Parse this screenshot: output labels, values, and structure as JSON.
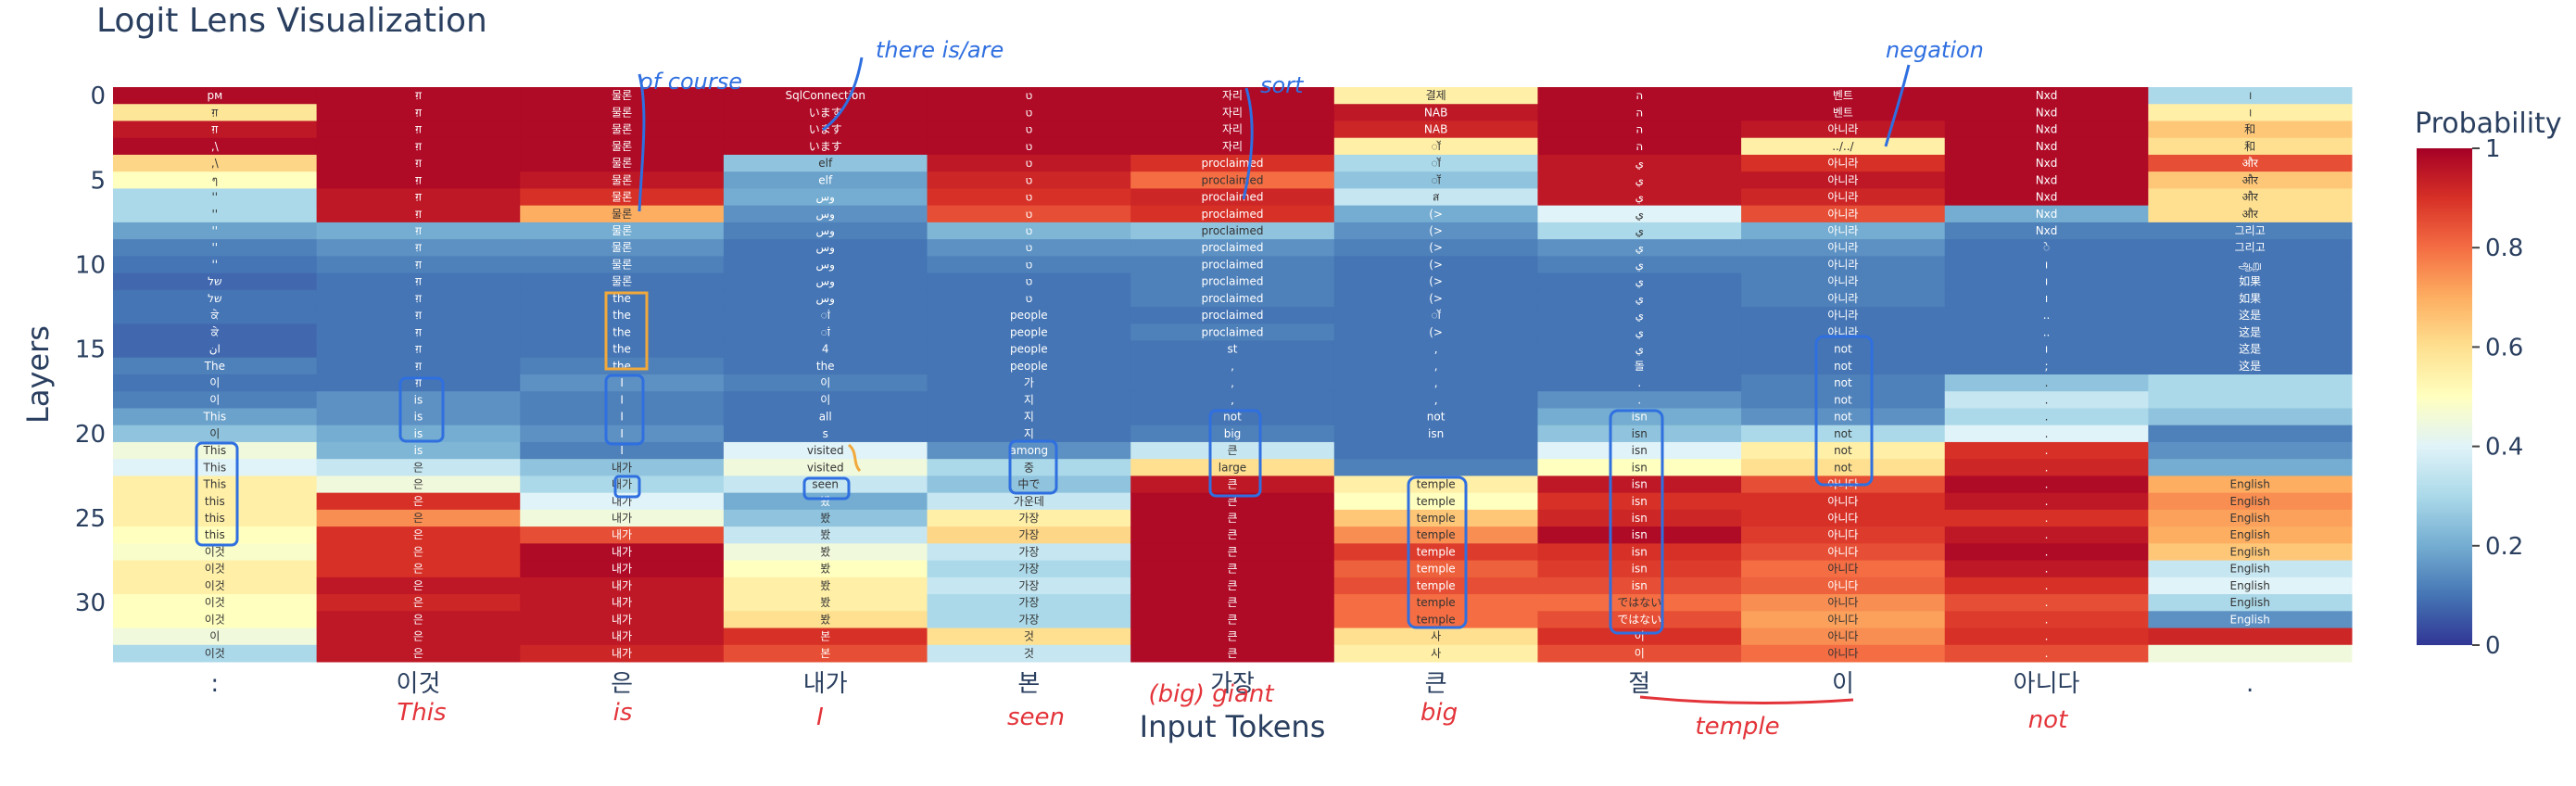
{
  "chart_data": {
    "type": "heatmap",
    "title": "Logit Lens Visualization",
    "xlabel": "Input Tokens",
    "ylabel": "Layers",
    "x_tokens": [
      ":",
      "이것",
      "은",
      "내가",
      "본",
      "가장",
      "큰",
      "절",
      "이",
      "아니다",
      "."
    ],
    "y_ticks": [
      0,
      5,
      10,
      15,
      20,
      25,
      30
    ],
    "layers": 34,
    "colorscale": "RdYlBu_r",
    "colorbar": {
      "title": "Probability",
      "ticks": [
        "0",
        "0.2",
        "0.4",
        "0.6",
        "0.8",
        "1"
      ],
      "range": [
        0,
        1
      ]
    },
    "columns": [
      {
        "token": ":",
        "labels": [
          "рм",
          "ग़",
          "ग़",
          ",\\",
          ",\\",
          "ๆ",
          "''",
          "''",
          "''",
          "''",
          "''",
          "של",
          "של",
          "ਕੇ",
          "ਕੇ",
          "ان",
          "The",
          "이",
          "이",
          "This",
          "이",
          "This",
          "This",
          "This",
          "this",
          "this",
          "this",
          "이것",
          "이것",
          "이것",
          "이것",
          "이것",
          "이",
          "이것"
        ],
        "probs": [
          0.98,
          0.58,
          0.95,
          0.98,
          0.62,
          0.5,
          0.3,
          0.3,
          0.18,
          0.12,
          0.1,
          0.08,
          0.1,
          0.1,
          0.08,
          0.08,
          0.12,
          0.1,
          0.12,
          0.18,
          0.25,
          0.45,
          0.4,
          0.55,
          0.55,
          0.55,
          0.5,
          0.48,
          0.55,
          0.55,
          0.5,
          0.5,
          0.45,
          0.3
        ]
      },
      {
        "token": "이것",
        "labels": [
          "ग़",
          "ग़",
          "ग़",
          "ग़",
          "ग़",
          "ग़",
          "ग़",
          "ग़",
          "ग़",
          "ग़",
          "ग़",
          "ग़",
          "ग़",
          "ग़",
          "ग़",
          "ग़",
          "ग़",
          "ग़",
          "is",
          "is",
          "is",
          "is",
          "은",
          "은",
          "은",
          "은",
          "은",
          "은",
          "은",
          "은",
          "은",
          "은",
          "은",
          "은"
        ],
        "probs": [
          0.98,
          0.98,
          0.98,
          0.98,
          0.98,
          0.98,
          0.95,
          0.95,
          0.2,
          0.15,
          0.12,
          0.1,
          0.1,
          0.1,
          0.1,
          0.1,
          0.1,
          0.1,
          0.15,
          0.15,
          0.2,
          0.22,
          0.35,
          0.45,
          0.9,
          0.75,
          0.9,
          0.9,
          0.9,
          0.95,
          0.92,
          0.95,
          0.95,
          0.95
        ]
      },
      {
        "token": "은",
        "labels": [
          "물론",
          "물론",
          "물론",
          "물론",
          "물론",
          "물론",
          "물론",
          "물론",
          "물론",
          "물론",
          "물론",
          "물론",
          "the",
          "the",
          "the",
          "the",
          "the",
          "I",
          "I",
          "I",
          "I",
          "I",
          "내가",
          "내가",
          "내가",
          "내가",
          "내가",
          "내가",
          "내가",
          "내가",
          "내가",
          "내가",
          "내가",
          "내가"
        ],
        "probs": [
          0.98,
          0.98,
          0.98,
          0.98,
          0.98,
          0.95,
          0.9,
          0.7,
          0.2,
          0.15,
          0.12,
          0.1,
          0.1,
          0.1,
          0.1,
          0.1,
          0.12,
          0.15,
          0.12,
          0.12,
          0.15,
          0.12,
          0.25,
          0.3,
          0.4,
          0.45,
          0.85,
          0.98,
          0.98,
          0.95,
          0.95,
          0.95,
          0.95,
          0.92
        ]
      },
      {
        "token": "내가",
        "labels": [
          "SqlConnection",
          "います",
          "います",
          "います",
          "elf",
          "elf",
          "وس",
          "وس",
          "وس",
          "وس",
          "وس",
          "وس",
          "وس",
          "ां",
          "ां",
          "4",
          "the",
          "이",
          "이",
          "all",
          "s",
          "visited",
          "visited",
          "seen",
          "봤",
          "봤",
          "봤",
          "봤",
          "봤",
          "봤",
          "봤",
          "봤",
          "본",
          "본"
        ],
        "probs": [
          0.98,
          0.98,
          0.98,
          0.98,
          0.25,
          0.18,
          0.2,
          0.15,
          0.12,
          0.1,
          0.1,
          0.1,
          0.1,
          0.1,
          0.1,
          0.1,
          0.1,
          0.12,
          0.1,
          0.1,
          0.1,
          0.4,
          0.45,
          0.35,
          0.2,
          0.25,
          0.35,
          0.45,
          0.5,
          0.55,
          0.55,
          0.6,
          0.9,
          0.85
        ]
      },
      {
        "token": "본",
        "labels": [
          "ט",
          "ט",
          "ט",
          "ט",
          "ט",
          "ט",
          "ט",
          "ט",
          "ט",
          "ט",
          "ט",
          "ט",
          "ט",
          "people",
          "people",
          "people",
          "people",
          "가",
          "지",
          "지",
          "지",
          "among",
          "중",
          "中で",
          "가운데",
          "가장",
          "가장",
          "가장",
          "가장",
          "가장",
          "가장",
          "가장",
          "것",
          "것"
        ],
        "probs": [
          0.98,
          0.98,
          0.98,
          0.98,
          0.95,
          0.92,
          0.9,
          0.85,
          0.22,
          0.15,
          0.12,
          0.1,
          0.1,
          0.1,
          0.1,
          0.1,
          0.1,
          0.1,
          0.1,
          0.1,
          0.1,
          0.15,
          0.3,
          0.25,
          0.35,
          0.55,
          0.62,
          0.35,
          0.3,
          0.35,
          0.3,
          0.3,
          0.6,
          0.35
        ]
      },
      {
        "token": "가장",
        "labels": [
          "자리",
          "자리",
          "자리",
          "자리",
          "proclaimed",
          "proclaimed",
          "proclaimed",
          "proclaimed",
          "proclaimed",
          "proclaimed",
          "proclaimed",
          "proclaimed",
          "proclaimed",
          "proclaimed",
          "proclaimed",
          "st",
          ",",
          ",",
          ",",
          "not",
          "big",
          "큰",
          "large",
          "큰",
          "큰",
          "큰",
          "큰",
          "큰",
          "큰",
          "큰",
          "큰",
          "큰",
          "큰",
          "큰"
        ],
        "probs": [
          0.98,
          0.98,
          0.98,
          0.98,
          0.9,
          0.8,
          0.92,
          0.9,
          0.25,
          0.15,
          0.12,
          0.12,
          0.12,
          0.1,
          0.12,
          0.1,
          0.1,
          0.1,
          0.1,
          0.1,
          0.12,
          0.35,
          0.6,
          0.95,
          0.98,
          0.98,
          0.98,
          0.98,
          0.98,
          0.98,
          0.98,
          0.98,
          0.98,
          0.98
        ]
      },
      {
        "token": "큰",
        "labels": [
          "결제",
          "NAB",
          "NAB",
          "ॉ",
          "ॉ",
          "ॉ",
          "ส",
          "(>",
          "(>",
          "(>",
          "(>",
          "(>",
          "(>",
          "ॉ",
          "(>",
          ",",
          ",",
          ",",
          ",",
          "not",
          "isn",
          "",
          "",
          "temple",
          "temple",
          "temple",
          "temple",
          "temple",
          "temple",
          "temple",
          "temple",
          "temple",
          "사",
          "사"
        ],
        "probs": [
          0.55,
          0.95,
          0.92,
          0.55,
          0.3,
          0.25,
          0.35,
          0.2,
          0.15,
          0.12,
          0.1,
          0.1,
          0.1,
          0.1,
          0.1,
          0.1,
          0.1,
          0.1,
          0.1,
          0.1,
          0.1,
          0.1,
          0.12,
          0.55,
          0.5,
          0.65,
          0.75,
          0.88,
          0.82,
          0.85,
          0.8,
          0.8,
          0.6,
          0.55
        ]
      },
      {
        "token": "절",
        "labels": [
          "ה",
          "ה",
          "ה",
          "ה",
          "ي",
          "ي",
          "ي",
          "ي",
          "ي",
          "ي",
          "ي",
          "ي",
          "ي",
          "ي",
          "ي",
          "ي",
          "돌",
          ".",
          ".",
          "isn",
          "isn",
          "isn",
          "isn",
          "isn",
          "isn",
          "isn",
          "isn",
          "isn",
          "isn",
          "isn",
          "ではない",
          "ではない",
          "이",
          "이"
        ],
        "probs": [
          0.98,
          0.98,
          0.98,
          0.98,
          0.95,
          0.95,
          0.95,
          0.4,
          0.3,
          0.15,
          0.12,
          0.1,
          0.1,
          0.1,
          0.1,
          0.1,
          0.1,
          0.1,
          0.15,
          0.2,
          0.25,
          0.4,
          0.5,
          0.95,
          0.9,
          0.92,
          0.98,
          0.9,
          0.88,
          0.85,
          0.8,
          0.85,
          0.9,
          0.85
        ]
      },
      {
        "token": "이",
        "labels": [
          "벤트",
          "벤트",
          "아니라",
          "../../",
          "아니라",
          "아니라",
          "아니라",
          "아니라",
          "아니라",
          "아니라",
          "아니라",
          "아니라",
          "아니라",
          "아니라",
          "아니라",
          "not",
          "not",
          "not",
          "not",
          "not",
          "not",
          "not",
          "not",
          "아니다",
          "아니다",
          "아니다",
          "아니다",
          "아니다",
          "아니다",
          "아니다",
          "아니다",
          "아니다",
          "아니다",
          "아니다"
        ],
        "probs": [
          0.98,
          0.98,
          0.95,
          0.55,
          0.9,
          0.95,
          0.92,
          0.85,
          0.2,
          0.15,
          0.12,
          0.12,
          0.12,
          0.1,
          0.1,
          0.1,
          0.1,
          0.12,
          0.12,
          0.15,
          0.3,
          0.55,
          0.6,
          0.85,
          0.9,
          0.9,
          0.88,
          0.85,
          0.8,
          0.82,
          0.75,
          0.72,
          0.75,
          0.8
        ]
      },
      {
        "token": "아니다",
        "labels": [
          "Nxd",
          "Nxd",
          "Nxd",
          "Nxd",
          "Nxd",
          "Nxd",
          "Nxd",
          "Nxd",
          "Nxd",
          "े",
          "ı",
          "ı",
          "ı",
          "..",
          "..",
          "ı",
          ";",
          ".",
          ".",
          ".",
          ".",
          ".",
          ".",
          ".",
          ".",
          ".",
          ".",
          ".",
          ".",
          ".",
          ".",
          ".",
          ".",
          "."
        ],
        "probs": [
          0.98,
          0.98,
          0.98,
          0.98,
          0.98,
          0.98,
          0.98,
          0.2,
          0.12,
          0.1,
          0.1,
          0.1,
          0.1,
          0.1,
          0.1,
          0.1,
          0.1,
          0.25,
          0.35,
          0.3,
          0.4,
          0.9,
          0.92,
          0.98,
          0.95,
          0.9,
          0.95,
          0.98,
          0.95,
          0.9,
          0.85,
          0.88,
          0.9,
          0.85
        ]
      },
      {
        "token": ".",
        "labels": [
          "।",
          "।",
          "和",
          "和",
          "और",
          "और",
          "और",
          "और",
          "그리고",
          "그리고",
          "ஆறு",
          "如果",
          "如果",
          "这是",
          "这是",
          "这是",
          "这是",
          "",
          "",
          "",
          "",
          "",
          "",
          "English",
          "English",
          "English",
          "English",
          "English",
          "English",
          "English",
          "English",
          "English",
          "",
          ""
        ],
        "probs": [
          0.3,
          0.55,
          0.65,
          0.6,
          0.85,
          0.65,
          0.6,
          0.6,
          0.12,
          0.1,
          0.1,
          0.1,
          0.1,
          0.1,
          0.1,
          0.1,
          0.1,
          0.3,
          0.3,
          0.25,
          0.12,
          0.15,
          0.2,
          0.7,
          0.75,
          0.72,
          0.7,
          0.65,
          0.35,
          0.4,
          0.3,
          0.15,
          0.92,
          0.45
        ]
      }
    ]
  },
  "annotations": {
    "blue": [
      "of course",
      "there is/are",
      "sort",
      "negation"
    ],
    "red": [
      "This",
      "is",
      "I",
      "seen",
      "(big) giant",
      "big",
      "temple",
      "not"
    ]
  }
}
